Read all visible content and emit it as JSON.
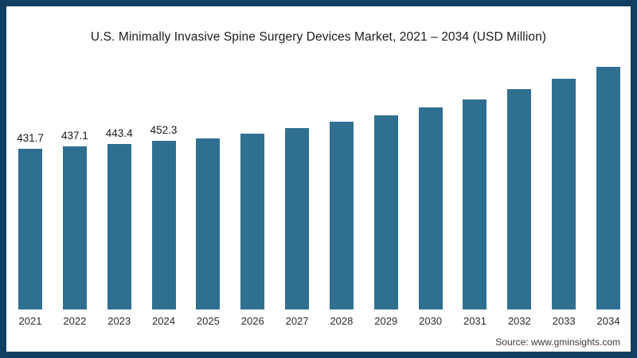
{
  "header": {
    "title": "U.S. Minimally Invasive Spine Surgery Devices Market, 2021 – 2034 (USD Million)"
  },
  "footer": {
    "source": "Source: www.gminsights.com"
  },
  "colors": {
    "frame_border": "#143e5f",
    "bar": "#2f7091",
    "title_text": "#1b1b1b",
    "axis_text": "#2b2b2b",
    "source_text": "#3c3c3c",
    "background": "#ffffff"
  },
  "chart_data": {
    "type": "bar",
    "title": "U.S. Minimally Invasive Spine Surgery Devices Market, 2021 – 2034 (USD Million)",
    "categories": [
      "2021",
      "2022",
      "2023",
      "2024",
      "2025",
      "2026",
      "2027",
      "2028",
      "2029",
      "2030",
      "2031",
      "2032",
      "2033",
      "2034"
    ],
    "values": [
      431.7,
      437.1,
      443.4,
      452.3,
      459,
      471,
      486,
      503,
      520,
      542,
      563,
      591,
      619,
      651
    ],
    "data_labels": [
      "431.7",
      "437.1",
      "443.4",
      "452.3",
      "",
      "",
      "",
      "",
      "",
      "",
      "",
      "",
      "",
      ""
    ],
    "xlabel": "",
    "ylabel": "",
    "ylim": [
      0,
      680
    ],
    "grid": false,
    "legend": "none",
    "value_axis_hidden": true,
    "bar_color": "#2f7091"
  }
}
